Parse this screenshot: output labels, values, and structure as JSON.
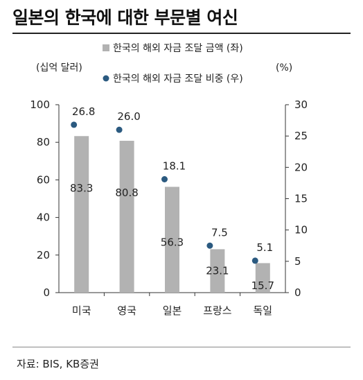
{
  "title": "일본의 한국에 대한 부문별 여신",
  "source": "자료: BIS, KB증권",
  "chart_data": {
    "type": "bar",
    "categories": [
      "미국",
      "영국",
      "일본",
      "프랑스",
      "독일"
    ],
    "series": [
      {
        "name": "한국의 해외 자금 조달 금액 (좌)",
        "type": "bar",
        "axis": "left",
        "color": "#b2b2b2",
        "values": [
          83.3,
          80.8,
          56.3,
          23.1,
          15.7
        ]
      },
      {
        "name": "한국의 해외 자금 조달 비중 (우)",
        "type": "scatter",
        "axis": "right",
        "color": "#2b5a80",
        "values": [
          26.8,
          26.0,
          18.1,
          7.5,
          5.1
        ]
      }
    ],
    "left_axis": {
      "label": "(십억 달러)",
      "range": [
        0,
        100
      ],
      "ticks": [
        0,
        20,
        40,
        60,
        80,
        100
      ]
    },
    "right_axis": {
      "label": "(%)",
      "range": [
        0,
        30
      ],
      "ticks": [
        0,
        5,
        10,
        15,
        20,
        25,
        30
      ]
    },
    "legend_position": "top-center",
    "grid": false
  }
}
